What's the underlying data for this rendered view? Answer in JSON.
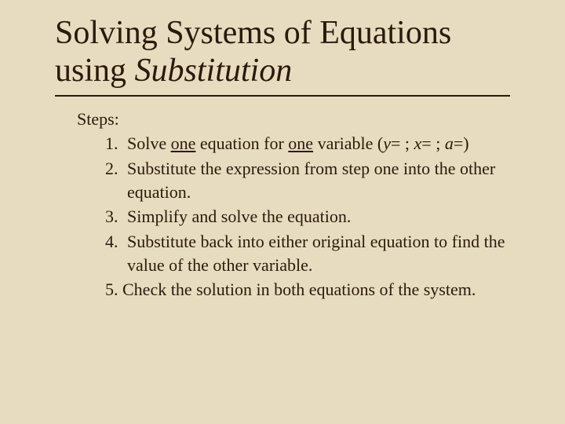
{
  "colors": {
    "background": "#e8dcc0",
    "text": "#2a1a0a",
    "rule": "#2a1a0a"
  },
  "typography": {
    "title_fontsize": 42,
    "body_fontsize": 22,
    "font_family": "Georgia, Times New Roman, serif"
  },
  "title": {
    "line1": "Solving Systems of Equations",
    "line2_prefix": " using ",
    "line2_italic": "Substitution"
  },
  "steps_label": "Steps:",
  "steps": [
    {
      "num": "1.",
      "parts": {
        "a": "Solve ",
        "u1": "one",
        "b": " equation for ",
        "u2": "one",
        "c": " variable (",
        "v1": "y",
        "d": "=  ; ",
        "v2": "x",
        "e": "=  ; ",
        "v3": "a",
        "f": "=)"
      }
    },
    {
      "num": "2.",
      "text": "Substitute the expression from step one into the other equation."
    },
    {
      "num": "3.",
      "text": "Simplify and solve the equation."
    },
    {
      "num": "4.",
      "text": "Substitute back into either original equation to find the value of the other variable."
    }
  ],
  "step5": {
    "num": "5.",
    "text": " Check the solution in both equations of the system."
  }
}
